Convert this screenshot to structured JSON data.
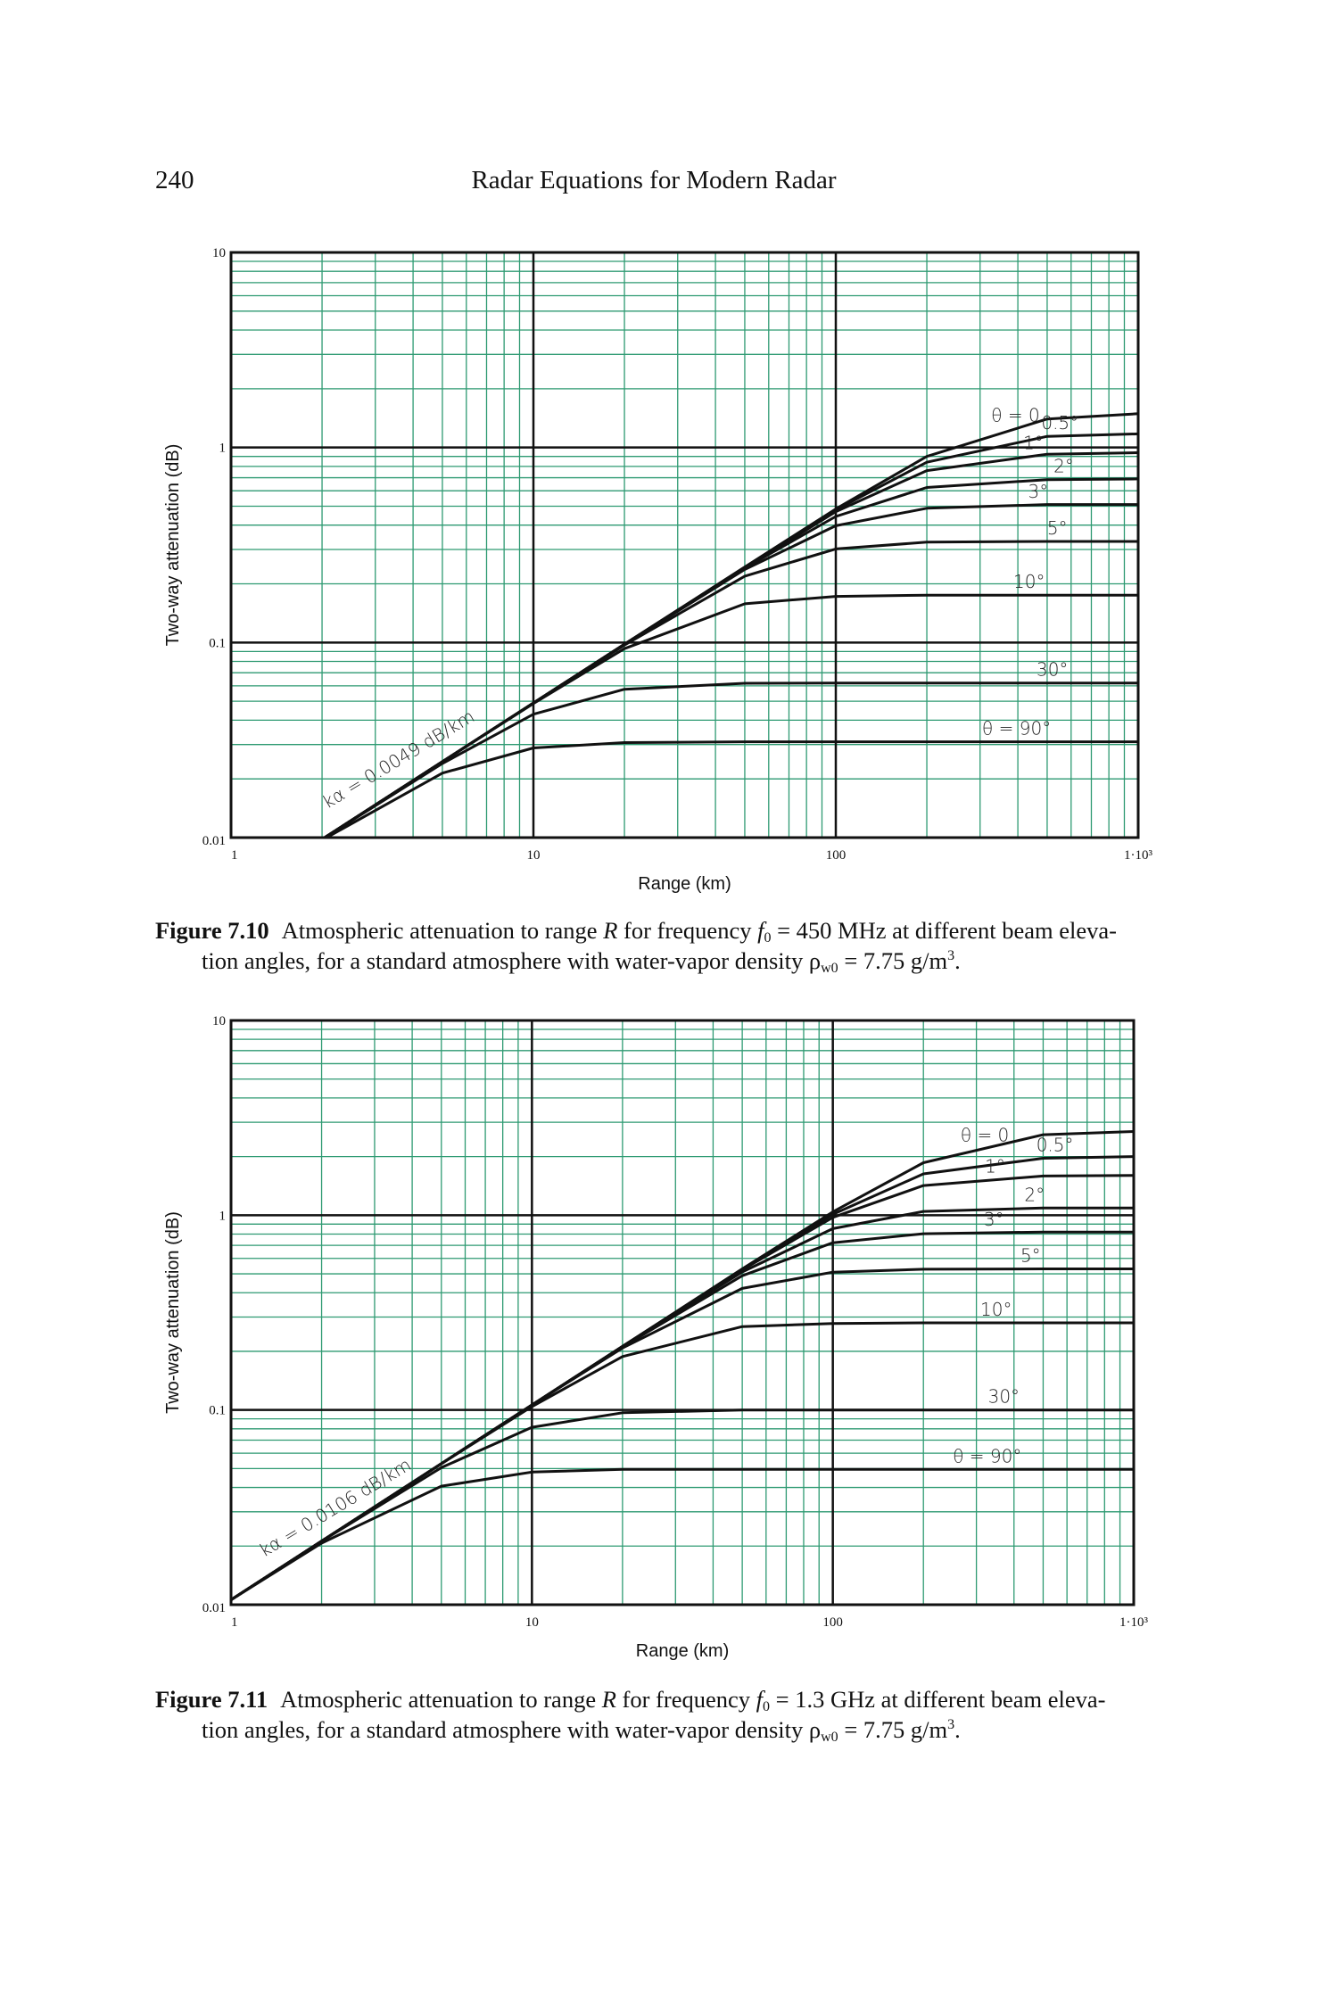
{
  "header": {
    "page_number": "240",
    "running_title": "Radar Equations for Modern Radar"
  },
  "figures": [
    {
      "caption": {
        "label": "Figure 7.10",
        "line1": [
          {
            "t": "Atmospheric attenuation to range "
          },
          {
            "t": "R",
            "i": true
          },
          {
            "t": " for frequency "
          },
          {
            "t": "f",
            "i": true
          },
          {
            "t": "0",
            "sub": true
          },
          {
            "t": " = 450 MHz at different beam eleva-"
          }
        ],
        "line2": [
          {
            "t": "tion angles, for a standard atmosphere with water-vapor density ρ"
          },
          {
            "t": "w0",
            "sub": true
          },
          {
            "t": " = 7.75 g/m"
          },
          {
            "t": "3",
            "sup": true
          },
          {
            "t": "."
          }
        ]
      }
    },
    {
      "caption": {
        "label": "Figure 7.11",
        "line1": [
          {
            "t": "Atmospheric attenuation to range "
          },
          {
            "t": "R",
            "i": true
          },
          {
            "t": " for frequency "
          },
          {
            "t": "f",
            "i": true
          },
          {
            "t": "0",
            "sub": true
          },
          {
            "t": " = 1.3 GHz at different beam eleva-"
          }
        ],
        "line2": [
          {
            "t": "tion angles, for a standard atmosphere with water-vapor density ρ"
          },
          {
            "t": "w0",
            "sub": true
          },
          {
            "t": " = 7.75 g/m"
          },
          {
            "t": "3",
            "sup": true
          },
          {
            "t": "."
          }
        ]
      }
    }
  ],
  "colors": {
    "grid_minor": "#2e9a72",
    "grid_major": "#111111",
    "curve": "#111111"
  },
  "chart_data": [
    {
      "type": "line",
      "xscale": "log",
      "yscale": "log",
      "xlabel": "Range (km)",
      "ylabel": "Two-way attenuation (dB)",
      "xlim": [
        1,
        1000
      ],
      "ylim": [
        0.01,
        10
      ],
      "xticks": [
        "1",
        "10",
        "100",
        "1·10³"
      ],
      "yticks": [
        "0.01",
        "0.1",
        "1",
        "10"
      ],
      "grid": true,
      "annotation": "kα = 0.0049 dB/km",
      "x": [
        1,
        2,
        5,
        10,
        20,
        50,
        100,
        200,
        500,
        1000
      ],
      "series": [
        {
          "name": "θ = 0",
          "values": [
            0.0049,
            0.0098,
            0.0245,
            0.049,
            0.098,
            0.244,
            0.484,
            0.9,
            1.4,
            1.49
          ]
        },
        {
          "name": "0.5°",
          "values": [
            0.0049,
            0.0098,
            0.0245,
            0.049,
            0.098,
            0.243,
            0.479,
            0.84,
            1.14,
            1.175
          ]
        },
        {
          "name": "1°",
          "values": [
            0.0049,
            0.0098,
            0.0245,
            0.049,
            0.098,
            0.241,
            0.469,
            0.761,
            0.924,
            0.94
          ]
        },
        {
          "name": "2°",
          "values": [
            0.0049,
            0.0098,
            0.0245,
            0.049,
            0.098,
            0.241,
            0.443,
            0.624,
            0.684,
            0.69
          ]
        },
        {
          "name": "3°",
          "values": [
            0.0049,
            0.0098,
            0.0245,
            0.049,
            0.0977,
            0.237,
            0.397,
            0.488,
            0.51,
            0.51
          ]
        },
        {
          "name": "5°",
          "values": [
            0.0049,
            0.0098,
            0.0245,
            0.049,
            0.097,
            0.219,
            0.302,
            0.327,
            0.33,
            0.33
          ]
        },
        {
          "name": "10°",
          "values": [
            0.0049,
            0.0098,
            0.0245,
            0.0487,
            0.093,
            0.158,
            0.1725,
            0.175,
            0.175,
            0.175
          ]
        },
        {
          "name": "30°",
          "values": [
            0.0049,
            0.0098,
            0.024,
            0.0429,
            0.0576,
            0.0618,
            0.062,
            0.062,
            0.062,
            0.062
          ]
        },
        {
          "name": "θ = 90°",
          "values": [
            0.0049,
            0.0097,
            0.0214,
            0.0288,
            0.0307,
            0.031,
            0.031,
            0.031,
            0.031,
            0.031
          ]
        }
      ]
    },
    {
      "type": "line",
      "xscale": "log",
      "yscale": "log",
      "xlabel": "Range (km)",
      "ylabel": "Two-way attenuation (dB)",
      "xlim": [
        1,
        1000
      ],
      "ylim": [
        0.01,
        10
      ],
      "xticks": [
        "1",
        "10",
        "100",
        "1·10³"
      ],
      "yticks": [
        "0.01",
        "0.1",
        "1",
        "10"
      ],
      "grid": true,
      "annotation": "kα = 0.0106 dB/km",
      "x": [
        1,
        2,
        5,
        10,
        20,
        50,
        100,
        200,
        500,
        1000
      ],
      "series": [
        {
          "name": "θ = 0",
          "values": [
            0.0106,
            0.0212,
            0.053,
            0.106,
            0.212,
            0.53,
            1.04,
            1.86,
            2.59,
            2.69
          ]
        },
        {
          "name": "0.5°",
          "values": [
            0.0106,
            0.0212,
            0.053,
            0.106,
            0.212,
            0.527,
            1.01,
            1.63,
            1.96,
            2.0
          ]
        },
        {
          "name": "1°",
          "values": [
            0.0106,
            0.0212,
            0.053,
            0.106,
            0.212,
            0.524,
            0.974,
            1.42,
            1.59,
            1.6
          ]
        },
        {
          "name": "2°",
          "values": [
            0.0106,
            0.0212,
            0.053,
            0.106,
            0.212,
            0.511,
            0.853,
            1.046,
            1.09,
            1.09
          ]
        },
        {
          "name": "3°",
          "values": [
            0.0106,
            0.0212,
            0.053,
            0.106,
            0.211,
            0.489,
            0.722,
            0.803,
            0.82,
            0.82
          ]
        },
        {
          "name": "5°",
          "values": [
            0.0106,
            0.0212,
            0.053,
            0.106,
            0.208,
            0.421,
            0.51,
            0.528,
            0.53,
            0.53
          ]
        },
        {
          "name": "10°",
          "values": [
            0.0106,
            0.0212,
            0.053,
            0.104,
            0.188,
            0.268,
            0.278,
            0.28,
            0.28,
            0.28
          ]
        },
        {
          "name": "30°",
          "values": [
            0.0106,
            0.0212,
            0.0506,
            0.0815,
            0.0968,
            0.1,
            0.1,
            0.1,
            0.1,
            0.1
          ]
        },
        {
          "name": "θ = 90°",
          "values": [
            0.0106,
            0.0207,
            0.0406,
            0.048,
            0.0495,
            0.0495,
            0.0495,
            0.0495,
            0.0495,
            0.0495
          ]
        }
      ]
    }
  ]
}
